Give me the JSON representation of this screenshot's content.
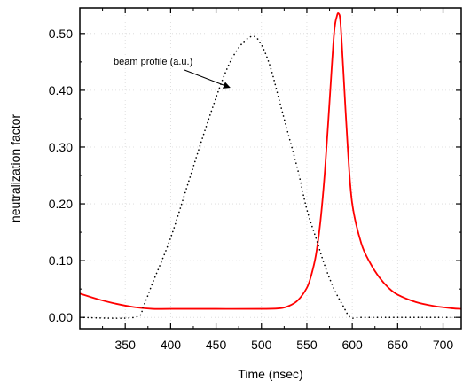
{
  "chart_data": {
    "type": "line",
    "xlabel": "Time (nsec)",
    "ylabel": "neutralization factor",
    "xlim": [
      300,
      720
    ],
    "ylim": [
      -0.02,
      0.545
    ],
    "x_ticks": [
      "350",
      "400",
      "450",
      "500",
      "550",
      "600",
      "650",
      "700"
    ],
    "y_ticks": [
      "0.00",
      "0.10",
      "0.20",
      "0.30",
      "0.40",
      "0.50"
    ],
    "grid": true,
    "annotation": {
      "text": "beam profile (a.u.)",
      "points_to": {
        "x": 465,
        "y": 0.405
      }
    },
    "series": [
      {
        "style": "solid",
        "color": "#ff0000",
        "x": [
          300,
          320,
          340,
          360,
          380,
          400,
          450,
          500,
          520,
          530,
          540,
          550,
          555,
          560,
          565,
          570,
          575,
          580,
          583,
          585,
          587,
          590,
          595,
          600,
          610,
          620,
          630,
          640,
          650,
          670,
          690,
          710,
          720
        ],
        "y": [
          0.042,
          0.032,
          0.024,
          0.018,
          0.015,
          0.015,
          0.015,
          0.015,
          0.016,
          0.02,
          0.03,
          0.052,
          0.075,
          0.11,
          0.17,
          0.26,
          0.38,
          0.5,
          0.53,
          0.535,
          0.52,
          0.44,
          0.3,
          0.2,
          0.13,
          0.095,
          0.07,
          0.052,
          0.04,
          0.027,
          0.02,
          0.016,
          0.015
        ]
      },
      {
        "style": "dotted",
        "color": "#000000",
        "x": [
          300,
          360,
          370,
          380,
          400,
          420,
          440,
          460,
          475,
          490,
          500,
          510,
          520,
          530,
          540,
          550,
          560,
          570,
          580,
          590,
          598,
          610,
          650,
          700,
          720
        ],
        "y": [
          0.0,
          0.0,
          0.02,
          0.06,
          0.14,
          0.24,
          0.34,
          0.43,
          0.475,
          0.495,
          0.48,
          0.44,
          0.38,
          0.32,
          0.26,
          0.19,
          0.14,
          0.09,
          0.05,
          0.02,
          0.0,
          0.0,
          0.0,
          0.0,
          0.0
        ]
      }
    ]
  }
}
